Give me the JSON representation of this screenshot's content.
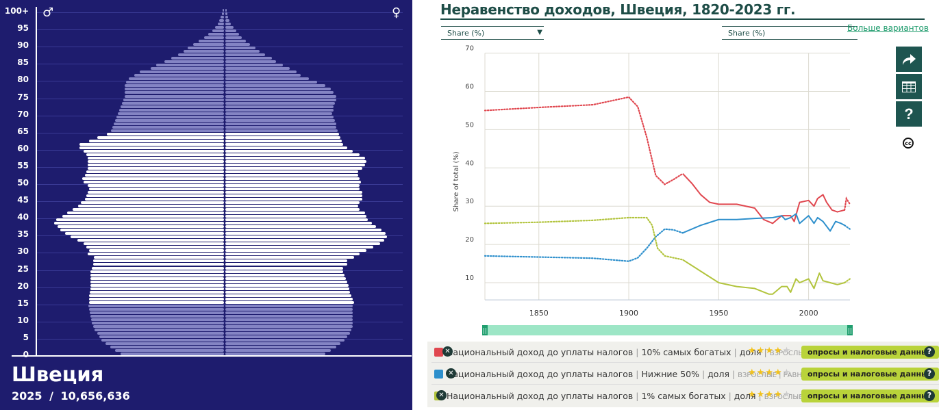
{
  "pyramid": {
    "country": "Швеция",
    "year": "2025",
    "separator": "/",
    "population": "10,656,636",
    "male_symbol": "♂",
    "female_symbol": "♀",
    "age_ticks": [
      "100+",
      "95",
      "90",
      "85",
      "80",
      "75",
      "70",
      "65",
      "60",
      "55",
      "50",
      "45",
      "40",
      "35",
      "30",
      "25",
      "20",
      "15",
      "10",
      "5",
      "0"
    ],
    "colors": {
      "background": "#1e1c6e",
      "highlight": "#ffffff",
      "bar": "#8484c4"
    },
    "highlight_range": [
      15,
      64
    ],
    "male_widths": [
      152,
      160,
      167,
      174,
      180,
      183,
      186,
      190,
      192,
      194,
      195,
      196,
      197,
      198,
      199,
      198,
      198,
      198,
      197,
      196,
      196,
      196,
      196,
      196,
      196,
      194,
      192,
      192,
      191,
      200,
      198,
      202,
      206,
      215,
      225,
      233,
      240,
      244,
      249,
      246,
      237,
      230,
      222,
      214,
      210,
      204,
      202,
      200,
      198,
      200,
      206,
      208,
      204,
      202,
      200,
      200,
      200,
      200,
      202,
      206,
      212,
      212,
      198,
      186,
      172,
      166,
      164,
      162,
      160,
      158,
      156,
      154,
      152,
      150,
      148,
      146,
      146,
      146,
      146,
      144,
      140,
      132,
      124,
      108,
      100,
      88,
      78,
      68,
      60,
      54,
      46,
      38,
      30,
      24,
      18,
      14,
      10,
      8,
      6,
      4,
      3
    ],
    "female_widths": [
      146,
      154,
      162,
      168,
      174,
      178,
      182,
      184,
      186,
      186,
      186,
      186,
      186,
      186,
      186,
      188,
      186,
      184,
      182,
      181,
      180,
      178,
      176,
      174,
      172,
      172,
      178,
      178,
      188,
      196,
      206,
      216,
      226,
      232,
      236,
      234,
      228,
      220,
      214,
      208,
      206,
      204,
      196,
      194,
      196,
      200,
      200,
      200,
      196,
      196,
      198,
      196,
      194,
      194,
      200,
      204,
      206,
      204,
      196,
      186,
      178,
      172,
      170,
      168,
      166,
      164,
      162,
      162,
      160,
      158,
      156,
      158,
      158,
      160,
      162,
      162,
      158,
      154,
      146,
      134,
      122,
      110,
      104,
      94,
      84,
      74,
      68,
      58,
      50,
      44,
      36,
      30,
      24,
      20,
      16,
      12,
      8,
      6,
      4,
      3,
      2
    ]
  },
  "chart": {
    "title": "Неравенство доходов, Швеция, 1820-2023 гг.",
    "selector_left": {
      "label": "Share (%)",
      "arrow": "▼"
    },
    "selector_right": {
      "label": "Share (%)"
    },
    "more_options": "Больше вариантов",
    "side_buttons": {
      "share": "share-icon",
      "table": "table-icon",
      "help": "?",
      "license": "cc"
    },
    "cc_label": "cc",
    "ylabel": "Share of total (%)",
    "slider_handle": "||"
  },
  "legend": {
    "items": [
      {
        "color": "#e0474f",
        "name": "Национальный доход до уплаты налогов",
        "group": "10% самых богатых",
        "unit": "доля",
        "meta": "ВЗРОСЛЫЕ | РАВНОЕ РАСПРЕДЕЛЕНИЕ",
        "stars_on": 4,
        "stars_total": 5,
        "source": "опросы и налоговые данные"
      },
      {
        "color": "#2d8fcc",
        "name": "Национальный доход до уплаты налогов",
        "group": "Нижние 50%",
        "unit": "доля",
        "meta": "ВЗРОСЛЫЕ | РАВНОЕ РАСПРЕДЕЛЕНИЕ",
        "stars_on": 4,
        "stars_total": 5,
        "source": "опросы и налоговые данные"
      },
      {
        "color": "#b2c43d",
        "name": "Национальный доход до уплаты налогов",
        "group": "1% самых богатых",
        "unit": "доля",
        "meta": "ВЗРОСЛЫЕ | РАВНОЕ РАСПРЕДЕЛЕНИЕ",
        "stars_on": 4,
        "stars_total": 5,
        "source": "опросы и налоговые данные"
      }
    ],
    "remove_symbol": "✕",
    "help_symbol": "?",
    "pipe": "|"
  },
  "chart_data": {
    "type": "line",
    "title": "Неравенство доходов, Швеция, 1820-2023 гг.",
    "xlabel": "",
    "ylabel": "Share of total (%)",
    "xlim": [
      1820,
      2023
    ],
    "ylim": [
      5,
      70
    ],
    "x_ticks": [
      1850,
      1900,
      1950,
      2000
    ],
    "y_ticks": [
      10,
      20,
      30,
      40,
      50,
      60,
      70
    ],
    "grid": true,
    "legend_position": "bottom",
    "series": [
      {
        "name": "Национальный доход до уплаты налогов | 10% самых богатых | доля",
        "color": "#e0474f",
        "points": [
          [
            1820,
            55
          ],
          [
            1850,
            55.8
          ],
          [
            1880,
            56.5
          ],
          [
            1895,
            58
          ],
          [
            1900,
            58.5
          ],
          [
            1905,
            56
          ],
          [
            1910,
            48
          ],
          [
            1915,
            38
          ],
          [
            1920,
            35.7
          ],
          [
            1925,
            37
          ],
          [
            1930,
            38.5
          ],
          [
            1935,
            36
          ],
          [
            1940,
            33
          ],
          [
            1945,
            31
          ],
          [
            1950,
            30.5
          ],
          [
            1960,
            30.5
          ],
          [
            1970,
            29.5
          ],
          [
            1975,
            26.5
          ],
          [
            1980,
            25.5
          ],
          [
            1985,
            27.5
          ],
          [
            1990,
            27.5
          ],
          [
            1992,
            26
          ],
          [
            1995,
            31
          ],
          [
            2000,
            31.5
          ],
          [
            2003,
            30
          ],
          [
            2005,
            32
          ],
          [
            2008,
            33
          ],
          [
            2010,
            31
          ],
          [
            2013,
            29
          ],
          [
            2016,
            28.5
          ],
          [
            2020,
            29
          ],
          [
            2021,
            32
          ],
          [
            2023,
            30.5
          ]
        ]
      },
      {
        "name": "Национальный доход до уплаты налогов | Нижние 50% | доля",
        "color": "#2d8fcc",
        "points": [
          [
            1820,
            17
          ],
          [
            1850,
            16.7
          ],
          [
            1880,
            16.4
          ],
          [
            1900,
            15.6
          ],
          [
            1905,
            16.5
          ],
          [
            1910,
            19
          ],
          [
            1915,
            22
          ],
          [
            1920,
            24
          ],
          [
            1925,
            23.8
          ],
          [
            1930,
            23
          ],
          [
            1935,
            24
          ],
          [
            1940,
            25
          ],
          [
            1950,
            26.5
          ],
          [
            1960,
            26.5
          ],
          [
            1970,
            26.8
          ],
          [
            1980,
            27
          ],
          [
            1985,
            27.5
          ],
          [
            1987,
            26.5
          ],
          [
            1990,
            27
          ],
          [
            1993,
            28
          ],
          [
            1995,
            25.5
          ],
          [
            2000,
            27.5
          ],
          [
            2003,
            25.5
          ],
          [
            2005,
            27
          ],
          [
            2008,
            26
          ],
          [
            2012,
            23.5
          ],
          [
            2015,
            26
          ],
          [
            2018,
            25.5
          ],
          [
            2020,
            25
          ],
          [
            2023,
            24
          ]
        ]
      },
      {
        "name": "Национальный доход до уплаты налогов | 1% самых богатых | доля",
        "color": "#b2c43d",
        "points": [
          [
            1820,
            25.5
          ],
          [
            1850,
            25.8
          ],
          [
            1880,
            26.3
          ],
          [
            1900,
            27
          ],
          [
            1910,
            27
          ],
          [
            1913,
            25
          ],
          [
            1916,
            19
          ],
          [
            1920,
            17
          ],
          [
            1930,
            16
          ],
          [
            1940,
            13
          ],
          [
            1950,
            10
          ],
          [
            1960,
            9
          ],
          [
            1970,
            8.5
          ],
          [
            1978,
            7
          ],
          [
            1980,
            7
          ],
          [
            1985,
            9
          ],
          [
            1988,
            9
          ],
          [
            1990,
            7.5
          ],
          [
            1993,
            11
          ],
          [
            1995,
            10
          ],
          [
            2000,
            11
          ],
          [
            2003,
            8.5
          ],
          [
            2006,
            12.5
          ],
          [
            2008,
            10.5
          ],
          [
            2012,
            10
          ],
          [
            2016,
            9.5
          ],
          [
            2020,
            10
          ],
          [
            2023,
            11
          ]
        ]
      }
    ]
  }
}
